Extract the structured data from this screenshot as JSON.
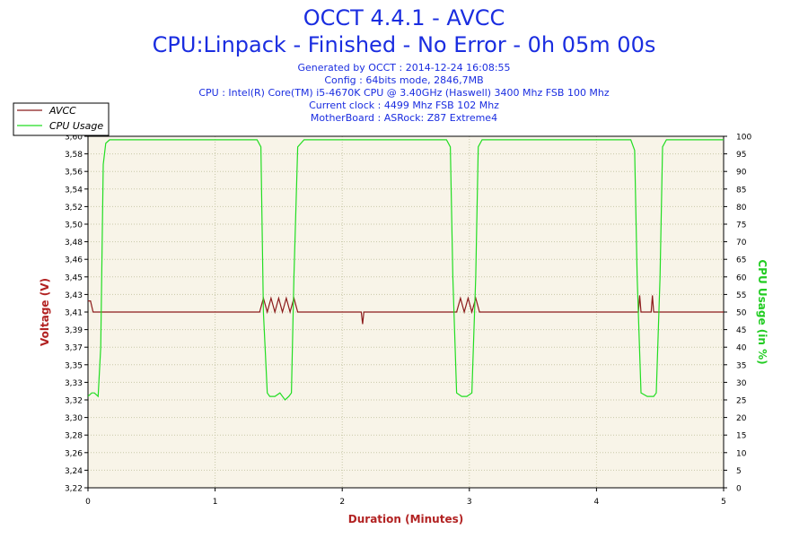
{
  "header": {
    "title": "OCCT 4.4.1 - AVCC",
    "subtitle": "CPU:Linpack - Finished - No Error - 0h 05m 00s",
    "info": [
      "Generated by OCCT : 2014-12-24 16:08:55",
      "Config : 64bits mode, 2846,7MB",
      "CPU : Intel(R) Core(TM) i5-4670K CPU @ 3.40GHz (Haswell) 3400 Mhz FSB 100 Mhz",
      "Current clock : 4499 Mhz FSB 102 Mhz",
      "MotherBoard : ASRock: Z87 Extreme4"
    ]
  },
  "colors": {
    "plot_bg": "#f8f4e8",
    "grid": "#c8c8a8",
    "voltage": "#8b1a1a",
    "cpu": "#22dd22",
    "axis_label_left": "#b22222",
    "axis_label_right": "#22cc22",
    "title": "#1a2de0"
  },
  "chart_data": {
    "type": "line",
    "xlabel": "Duration (Minutes)",
    "ylabel": "Voltage (V)",
    "y2label": "CPU Usage (in %)",
    "xlim": [
      0,
      5
    ],
    "ylim": [
      3.22,
      3.6
    ],
    "y2lim": [
      0,
      100
    ],
    "grid": true,
    "legend_position": "top-left",
    "x_ticks": [
      "0",
      "1",
      "2",
      "3",
      "4",
      "5"
    ],
    "y_ticks": [
      "3,22",
      "3,24",
      "3,26",
      "3,28",
      "3,30",
      "3,32",
      "3,33",
      "3,35",
      "3,37",
      "3,39",
      "3,41",
      "3,43",
      "3,45",
      "3,46",
      "3,48",
      "3,50",
      "3,52",
      "3,54",
      "3,56",
      "3,58",
      "3,60"
    ],
    "y2_ticks": [
      "0",
      "5",
      "10",
      "15",
      "20",
      "25",
      "30",
      "35",
      "40",
      "45",
      "50",
      "55",
      "60",
      "65",
      "70",
      "75",
      "80",
      "85",
      "90",
      "95",
      "100"
    ],
    "series": [
      {
        "name": "AVCC",
        "axis": "left",
        "x": [
          0,
          0.02,
          0.04,
          0.06,
          1.35,
          1.38,
          1.41,
          1.44,
          1.47,
          1.5,
          1.53,
          1.56,
          1.59,
          1.62,
          1.65,
          2.14,
          2.15,
          2.16,
          2.17,
          2.18,
          2.9,
          2.93,
          2.96,
          2.99,
          3.02,
          3.05,
          3.08,
          3.11,
          4.32,
          4.33,
          4.34,
          4.35,
          4.36,
          4.42,
          4.43,
          4.44,
          4.45,
          4.46,
          5.0
        ],
        "y": [
          3.422,
          3.422,
          3.41,
          3.41,
          3.41,
          3.425,
          3.41,
          3.425,
          3.41,
          3.425,
          3.41,
          3.425,
          3.41,
          3.425,
          3.41,
          3.41,
          3.41,
          3.397,
          3.41,
          3.41,
          3.41,
          3.425,
          3.41,
          3.425,
          3.41,
          3.425,
          3.41,
          3.41,
          3.41,
          3.41,
          3.428,
          3.41,
          3.41,
          3.41,
          3.41,
          3.428,
          3.41,
          3.41,
          3.41
        ]
      },
      {
        "name": "CPU Usage",
        "axis": "right",
        "x": [
          0,
          0.03,
          0.05,
          0.08,
          0.1,
          0.12,
          0.14,
          0.17,
          0.25,
          0.5,
          0.75,
          1.0,
          1.25,
          1.33,
          1.36,
          1.38,
          1.41,
          1.43,
          1.47,
          1.51,
          1.55,
          1.58,
          1.6,
          1.62,
          1.65,
          1.7,
          2.0,
          2.3,
          2.6,
          2.82,
          2.85,
          2.87,
          2.9,
          2.94,
          2.98,
          3.02,
          3.05,
          3.07,
          3.1,
          3.2,
          3.5,
          3.8,
          4.2,
          4.27,
          4.3,
          4.32,
          4.35,
          4.4,
          4.45,
          4.47,
          4.5,
          4.52,
          4.55,
          4.7,
          5.0
        ],
        "y": [
          26,
          27,
          27,
          26,
          40,
          92,
          98,
          99,
          99,
          99,
          99,
          99,
          99,
          99,
          97,
          50,
          27,
          26,
          26,
          27,
          25,
          26,
          27,
          60,
          97,
          99,
          99,
          99,
          99,
          99,
          97,
          60,
          27,
          26,
          26,
          27,
          60,
          97,
          99,
          99,
          99,
          99,
          99,
          99,
          96,
          60,
          27,
          26,
          26,
          27,
          60,
          97,
          99,
          99,
          99
        ]
      }
    ]
  }
}
